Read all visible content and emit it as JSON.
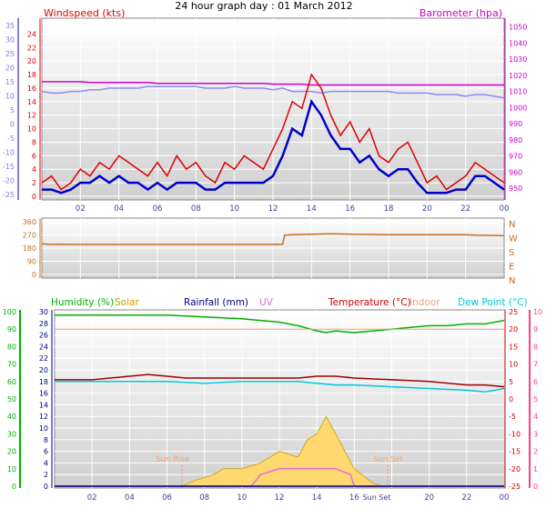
{
  "page_title": "24 hour graph day : 01 March 2012",
  "colors": {
    "windspeed": "#e00000",
    "wind_avg": "#0000cc",
    "barometer": "#cc00cc",
    "pressure_line": "#8c8cf0",
    "direction": "#c07020",
    "humidity": "#00b000",
    "solar": "#c8a000",
    "solar_fill": "#ffd870",
    "rainfall": "#000080",
    "uv": "#e070e0",
    "temperature": "#cc0000",
    "indoor": "#f0a080",
    "dew": "#00c8e0",
    "temp_line": "#a00000",
    "left_axis": "#8080e0",
    "right_axis": "#ff4080",
    "hum_axis": "#00b000"
  },
  "hour_labels": [
    "02",
    "04",
    "06",
    "08",
    "10",
    "12",
    "14",
    "16",
    "18",
    "20",
    "22",
    "00"
  ],
  "bottom_hour_labels": [
    "02",
    "04",
    "06",
    "08",
    "10",
    "12",
    "14",
    "16",
    "20",
    "22",
    "00"
  ],
  "chart_data": [
    {
      "type": "line",
      "name": "wind_pressure_panel",
      "left_label": "Windspeed (kts)",
      "right_label": "Barometer (hpa)",
      "wind_ticks": [
        "24",
        "22",
        "20",
        "18",
        "16",
        "14",
        "12",
        "10",
        "8",
        "6",
        "4",
        "2",
        "0"
      ],
      "left_outer_ticks": [
        "35",
        "30",
        "25",
        "20",
        "15",
        "10",
        "5",
        "0",
        "-5",
        "-10",
        "-15",
        "-20",
        "-25"
      ],
      "baro_ticks": [
        "1050",
        "1040",
        "1030",
        "1020",
        "1010",
        "1000",
        "990",
        "980",
        "970",
        "960",
        "950"
      ],
      "wind_ylim": [
        0,
        25
      ],
      "baro_ylim": [
        945,
        1052
      ],
      "x_hours": [
        0,
        0.5,
        1,
        1.5,
        2,
        2.5,
        3,
        3.5,
        4,
        4.5,
        5,
        5.5,
        6,
        6.5,
        7,
        7.5,
        8,
        8.5,
        9,
        9.5,
        10,
        10.5,
        11,
        11.5,
        12,
        12.5,
        13,
        13.5,
        14,
        14.5,
        15,
        15.5,
        16,
        16.5,
        17,
        17.5,
        18,
        18.5,
        19,
        19.5,
        20,
        20.5,
        21,
        21.5,
        22,
        22.5,
        23,
        23.5,
        24
      ],
      "series": [
        {
          "name": "Windspeed (kts)",
          "values": [
            2,
            3,
            1,
            2,
            4,
            3,
            5,
            4,
            6,
            5,
            4,
            3,
            5,
            3,
            6,
            4,
            5,
            3,
            2,
            5,
            4,
            6,
            5,
            4,
            7,
            10,
            14,
            13,
            18,
            16,
            12,
            9,
            11,
            8,
            10,
            6,
            5,
            7,
            8,
            5,
            2,
            3,
            1,
            2,
            3,
            5,
            4,
            3,
            2
          ]
        },
        {
          "name": "wind_average",
          "values": [
            1,
            1,
            0.5,
            1,
            2,
            2,
            3,
            2,
            3,
            2,
            2,
            1,
            2,
            1,
            2,
            2,
            2,
            1,
            1,
            2,
            2,
            2,
            2,
            2,
            3,
            6,
            10,
            9,
            14,
            12,
            9,
            7,
            7,
            5,
            6,
            4,
            3,
            4,
            4,
            2,
            0.5,
            0.5,
            0.5,
            1,
            1,
            3,
            3,
            2,
            1
          ]
        },
        {
          "name": "Barometer (hpa)",
          "values": [
            1016,
            1016,
            1016,
            1016,
            1016,
            1015.5,
            1015.5,
            1015.5,
            1015.5,
            1015.5,
            1015.5,
            1015.5,
            1015,
            1015,
            1015,
            1015,
            1015,
            1015,
            1015,
            1015,
            1015,
            1015,
            1015,
            1015,
            1014.5,
            1014.5,
            1014.5,
            1014.5,
            1014,
            1014,
            1014,
            1014,
            1014,
            1014,
            1014,
            1014,
            1014,
            1014,
            1014,
            1014,
            1014,
            1014,
            1014,
            1014,
            1014,
            1014,
            1014,
            1014,
            1014
          ]
        },
        {
          "name": "pressure_secondary",
          "values": [
            1010,
            1009,
            1009,
            1010,
            1010,
            1011,
            1011,
            1012,
            1012,
            1012,
            1012,
            1013,
            1013,
            1013,
            1013,
            1013,
            1013,
            1012,
            1012,
            1012,
            1013,
            1012,
            1012,
            1012,
            1011,
            1012,
            1010,
            1010,
            1010,
            1009,
            1010,
            1010,
            1010,
            1010,
            1010,
            1010,
            1010,
            1009,
            1009,
            1009,
            1009,
            1008,
            1008,
            1008,
            1007,
            1008,
            1008,
            1007,
            1006
          ]
        }
      ]
    },
    {
      "type": "line",
      "name": "wind_direction_panel",
      "degree_ticks": [
        "360",
        "270",
        "180",
        "90",
        "0"
      ],
      "compass_labels": [
        "N",
        "W",
        "S",
        "E",
        "N"
      ],
      "ylim": [
        0,
        360
      ],
      "series": [
        {
          "name": "wind_direction",
          "points": [
            [
              0,
              210
            ],
            [
              0.5,
              205
            ],
            [
              1,
              206
            ],
            [
              1.5,
              205
            ],
            [
              2,
              205
            ],
            [
              4,
              205
            ],
            [
              6,
              205
            ],
            [
              8,
              205
            ],
            [
              10,
              205
            ],
            [
              12,
              205
            ],
            [
              12.5,
              206
            ],
            [
              12.6,
              268
            ],
            [
              13,
              272
            ],
            [
              14,
              275
            ],
            [
              15,
              278
            ],
            [
              16,
              275
            ],
            [
              17,
              273
            ],
            [
              18,
              272
            ],
            [
              19,
              272
            ],
            [
              20,
              272
            ],
            [
              21,
              272
            ],
            [
              22,
              272
            ],
            [
              22.5,
              268
            ],
            [
              24,
              265
            ]
          ]
        }
      ]
    },
    {
      "type": "line",
      "name": "weather_panel",
      "labels": {
        "humidity": "Humidity (%)",
        "solar": "Solar",
        "rainfall": "Rainfall (mm)",
        "uv": "UV",
        "temperature": "Temperature (°C)",
        "indoor": "Indoor",
        "dew": "Dew Point (°C)"
      },
      "humidity_ticks": [
        "100",
        "90",
        "80",
        "70",
        "60",
        "50",
        "40",
        "30",
        "20",
        "10",
        "0"
      ],
      "mm_ticks": [
        "30",
        "28",
        "26",
        "24",
        "22",
        "20",
        "18",
        "16",
        "14",
        "12",
        "10",
        "8",
        "6",
        "4",
        "2",
        "0"
      ],
      "temp_ticks": [
        "25",
        "20",
        "15",
        "10",
        "5",
        "0",
        "-5",
        "-10",
        "-15",
        "-20",
        "-25"
      ],
      "temp_pad_ticks": [
        "10",
        "9",
        "8",
        "7",
        "6",
        "5",
        "4",
        "3",
        "2",
        "1",
        "0"
      ],
      "annotations": [
        "Sun Rise",
        "Sun Set",
        "Sun Set"
      ],
      "series": [
        {
          "name": "Humidity (%)",
          "points": [
            [
              0,
              98
            ],
            [
              4,
              98
            ],
            [
              6,
              98
            ],
            [
              8,
              97
            ],
            [
              10,
              96
            ],
            [
              12,
              94
            ],
            [
              13,
              92
            ],
            [
              14,
              89
            ],
            [
              14.5,
              88
            ],
            [
              15,
              89
            ],
            [
              16,
              88
            ],
            [
              17,
              89
            ],
            [
              18,
              90
            ],
            [
              19,
              91
            ],
            [
              20,
              92
            ],
            [
              21,
              92
            ],
            [
              22,
              93
            ],
            [
              23,
              93
            ],
            [
              24,
              95
            ]
          ]
        },
        {
          "name": "Indoor",
          "points": [
            [
              0,
              20
            ],
            [
              6,
              20
            ],
            [
              12,
              20
            ],
            [
              18,
              20
            ],
            [
              24,
              20
            ]
          ]
        },
        {
          "name": "Temperature (°C)",
          "points": [
            [
              0,
              5.5
            ],
            [
              2,
              5.5
            ],
            [
              4,
              6.5
            ],
            [
              5,
              7
            ],
            [
              6,
              6.5
            ],
            [
              7,
              6
            ],
            [
              8,
              6
            ],
            [
              10,
              6
            ],
            [
              11,
              6
            ],
            [
              12,
              6
            ],
            [
              13,
              6
            ],
            [
              14,
              6.5
            ],
            [
              15,
              6.5
            ],
            [
              16,
              6
            ],
            [
              18,
              5.5
            ],
            [
              20,
              5
            ],
            [
              22,
              4
            ],
            [
              23,
              4
            ],
            [
              24,
              3.5
            ]
          ]
        },
        {
          "name": "Dew Point (°C)",
          "points": [
            [
              0,
              5
            ],
            [
              2,
              5
            ],
            [
              4,
              5
            ],
            [
              6,
              5
            ],
            [
              8,
              4.5
            ],
            [
              10,
              5
            ],
            [
              12,
              5
            ],
            [
              13,
              5
            ],
            [
              14,
              4.5
            ],
            [
              15,
              4
            ],
            [
              16,
              4
            ],
            [
              18,
              3.5
            ],
            [
              20,
              3
            ],
            [
              22,
              2.5
            ],
            [
              23,
              2
            ],
            [
              24,
              3
            ]
          ]
        },
        {
          "name": "Solar",
          "points": [
            [
              0,
              0
            ],
            [
              6.8,
              0
            ],
            [
              7.5,
              1
            ],
            [
              8.5,
              2
            ],
            [
              9,
              3
            ],
            [
              10,
              3
            ],
            [
              11,
              4
            ],
            [
              12,
              6
            ],
            [
              13,
              5
            ],
            [
              13.5,
              8
            ],
            [
              14,
              9
            ],
            [
              14.5,
              12
            ],
            [
              15,
              9
            ],
            [
              15.5,
              6
            ],
            [
              16,
              3
            ],
            [
              17,
              0.5
            ],
            [
              17.5,
              0
            ],
            [
              24,
              0
            ]
          ]
        },
        {
          "name": "UV",
          "points": [
            [
              0,
              0
            ],
            [
              10.5,
              0
            ],
            [
              11,
              2
            ],
            [
              12,
              3
            ],
            [
              13,
              3
            ],
            [
              14,
              3
            ],
            [
              15,
              3
            ],
            [
              15.8,
              2
            ],
            [
              16,
              0
            ],
            [
              24,
              0
            ]
          ]
        }
      ]
    }
  ]
}
